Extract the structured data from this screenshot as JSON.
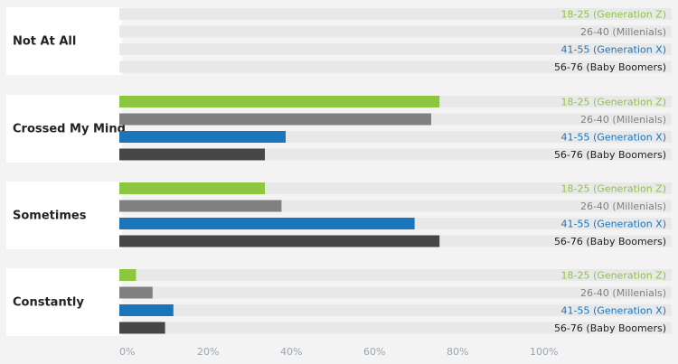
{
  "chart_data": {
    "type": "bar",
    "orientation": "horizontal",
    "categories": [
      "Not At All",
      "Crossed My Mind",
      "Sometimes",
      "Constantly"
    ],
    "series": [
      {
        "name": "18-25 (Generation Z)",
        "color": "#8dc63f",
        "values": [
          0,
          77,
          35,
          4
        ]
      },
      {
        "name": "26-40 (Millenials)",
        "color": "#808080",
        "values": [
          0,
          75,
          39,
          8
        ]
      },
      {
        "name": "41-55 (Generation X)",
        "color": "#1b75bb",
        "values": [
          0,
          40,
          71,
          13
        ]
      },
      {
        "name": "56-76 (Baby Boomers)",
        "color": "#464646",
        "values": [
          0,
          35,
          77,
          11
        ]
      }
    ],
    "xlim": [
      0,
      100
    ],
    "x_ticks": [
      "0%",
      "20%",
      "40%",
      "60%",
      "80%",
      "100%"
    ],
    "legend": "inline-right",
    "grid": false,
    "track_color": "#e8e8e8",
    "label_panel_color": "#ffffff"
  }
}
